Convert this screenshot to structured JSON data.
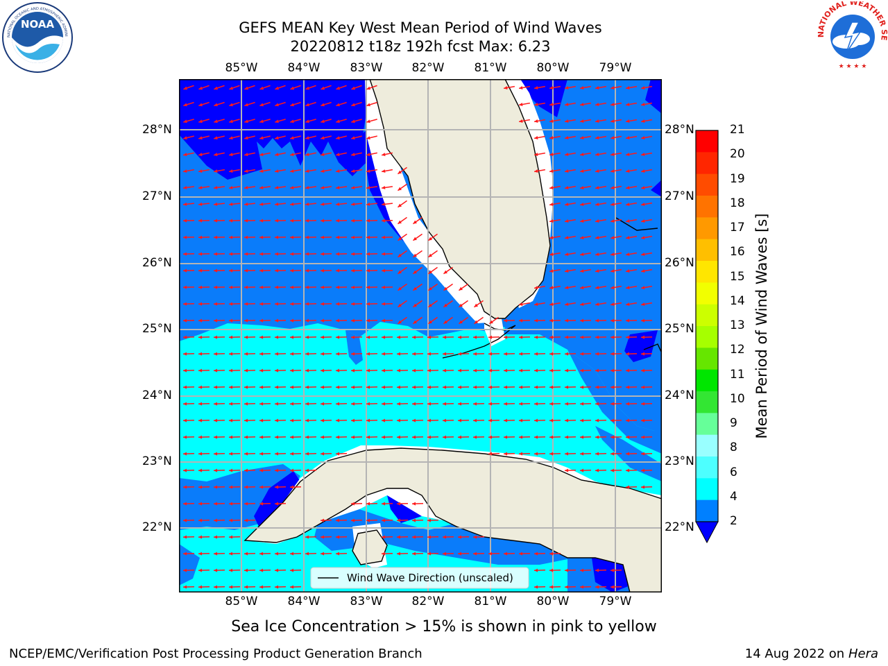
{
  "header": {
    "title_line1": "GEFS MEAN Key West Mean Period of Wind Waves",
    "title_line2": "20220812 t18z 192h fcst   Max: 6.23"
  },
  "logos": {
    "left": {
      "text": "NOAA",
      "ring_text": "NATIONAL OCEANIC AND ATMOSPHERIC ADMINISTRATION · U.S. DEPARTMENT OF COMMERCE",
      "icon": "noaa-logo-icon"
    },
    "right": {
      "ring_text": "NATIONAL WEATHER SERVICE",
      "icon": "nws-logo-icon"
    }
  },
  "map": {
    "lon_ticks": [
      "85°W",
      "84°W",
      "83°W",
      "82°W",
      "81°W",
      "80°W",
      "79°W"
    ],
    "lat_ticks": [
      "28°N",
      "27°N",
      "26°N",
      "25°N",
      "24°N",
      "23°N",
      "22°N"
    ],
    "legend_label": "Wind Wave Direction (unscaled)",
    "colors": {
      "land": "#eeecdc",
      "deep": "#0000ff",
      "blue": "#0a7cfa",
      "cyan": "#00ffff",
      "arrow": "#ff1a1a",
      "grid": "#b4b4b4"
    }
  },
  "colorbar": {
    "title": "Mean Period of Wind Waves [s]",
    "ticks": [
      "21",
      "20",
      "19",
      "18",
      "17",
      "16",
      "15",
      "14",
      "13",
      "12",
      "11",
      "10",
      "9",
      "8",
      "6",
      "4",
      "2"
    ],
    "colors": [
      "#ff0000",
      "#ff2600",
      "#ff4c00",
      "#ff7300",
      "#ff9900",
      "#ffbf00",
      "#ffe600",
      "#f2ff00",
      "#ccff00",
      "#a6ff00",
      "#66e600",
      "#00e600",
      "#33e633",
      "#66ff99",
      "#99ffff",
      "#4dffff",
      "#00ffff",
      "#0080ff"
    ]
  },
  "note": "Sea Ice Concentration > 15% is shown in pink to yellow",
  "footer": {
    "left": "NCEP/EMC/Verification Post Processing Product Generation Branch",
    "date": "14 Aug 2022 on",
    "host": "Hera"
  }
}
